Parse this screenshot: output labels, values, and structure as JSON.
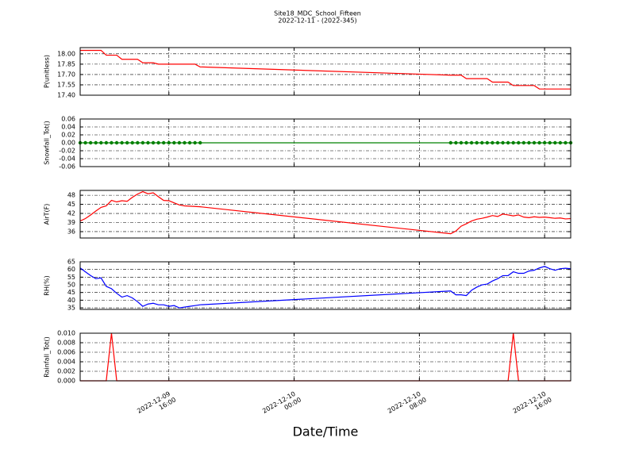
{
  "chart_data": [
    {
      "type": "line",
      "title": "Site18_MDC_School_Fifteen",
      "subtitle": "2022-12-11 - (2022-345)",
      "ylabel": "P(unitless)",
      "x": [
        "2022-12-09 10:20",
        "2022-12-09 10:40",
        "2022-12-09 11:00",
        "2022-12-09 11:20",
        "2022-12-09 11:40",
        "2022-12-09 12:00",
        "2022-12-09 12:20",
        "2022-12-09 12:40",
        "2022-12-09 13:00",
        "2022-12-09 13:20",
        "2022-12-09 13:40",
        "2022-12-09 14:00",
        "2022-12-09 14:20",
        "2022-12-09 14:40",
        "2022-12-09 15:00",
        "2022-12-09 15:20",
        "2022-12-09 15:40",
        "2022-12-09 16:00",
        "2022-12-09 16:20",
        "2022-12-09 16:40",
        "2022-12-09 17:00",
        "2022-12-09 17:20",
        "2022-12-09 17:40",
        "2022-12-09 18:00",
        "2022-12-10 10:00",
        "2022-12-10 10:20",
        "2022-12-10 10:40",
        "2022-12-10 11:00",
        "2022-12-10 11:20",
        "2022-12-10 11:40",
        "2022-12-10 12:00",
        "2022-12-10 12:20",
        "2022-12-10 12:40",
        "2022-12-10 13:00",
        "2022-12-10 13:20",
        "2022-12-10 13:40",
        "2022-12-10 14:00",
        "2022-12-10 14:20",
        "2022-12-10 14:40",
        "2022-12-10 15:00",
        "2022-12-10 15:20",
        "2022-12-10 15:40",
        "2022-12-10 16:00",
        "2022-12-10 16:20",
        "2022-12-10 16:40",
        "2022-12-10 17:00",
        "2022-12-10 17:20",
        "2022-12-10 17:40"
      ],
      "series": [
        {
          "color": "#ff0000",
          "values": [
            18.05,
            18.05,
            18.05,
            18.05,
            18.05,
            17.98,
            17.98,
            17.98,
            17.92,
            17.92,
            17.92,
            17.92,
            17.87,
            17.87,
            17.87,
            17.85,
            17.85,
            17.85,
            17.85,
            17.85,
            17.85,
            17.85,
            17.85,
            17.81,
            17.69,
            17.69,
            17.69,
            17.64,
            17.64,
            17.64,
            17.64,
            17.64,
            17.59,
            17.59,
            17.59,
            17.59,
            17.54,
            17.54,
            17.54,
            17.54,
            17.54,
            17.49,
            17.49,
            17.49,
            17.49,
            17.49,
            17.49,
            17.49
          ]
        }
      ],
      "xlim": [
        "2022-12-09 10:20",
        "2022-12-10 17:40"
      ],
      "xticks": [
        "2022-12-09 16:00",
        "2022-12-10 00:00",
        "2022-12-10 08:00",
        "2022-12-10 16:00"
      ],
      "ylim": [
        17.4,
        18.09
      ],
      "yticks": [
        {
          "value": 17.4,
          "label": "17.40"
        },
        {
          "value": 17.55,
          "label": "17.55"
        },
        {
          "value": 17.7,
          "label": "17.70"
        },
        {
          "value": 17.85,
          "label": "17.85"
        },
        {
          "value": 18.0,
          "label": "18.00"
        }
      ],
      "grid": true
    },
    {
      "type": "line",
      "ylabel": "Snowfall_Tot()",
      "markers": true,
      "x": [
        "2022-12-09 10:20",
        "2022-12-09 10:40",
        "2022-12-09 11:00",
        "2022-12-09 11:20",
        "2022-12-09 11:40",
        "2022-12-09 12:00",
        "2022-12-09 12:20",
        "2022-12-09 12:40",
        "2022-12-09 13:00",
        "2022-12-09 13:20",
        "2022-12-09 13:40",
        "2022-12-09 14:00",
        "2022-12-09 14:20",
        "2022-12-09 14:40",
        "2022-12-09 15:00",
        "2022-12-09 15:20",
        "2022-12-09 15:40",
        "2022-12-09 16:00",
        "2022-12-09 16:20",
        "2022-12-09 16:40",
        "2022-12-09 17:00",
        "2022-12-09 17:20",
        "2022-12-09 17:40",
        "2022-12-09 18:00",
        "2022-12-10 10:00",
        "2022-12-10 10:20",
        "2022-12-10 10:40",
        "2022-12-10 11:00",
        "2022-12-10 11:20",
        "2022-12-10 11:40",
        "2022-12-10 12:00",
        "2022-12-10 12:20",
        "2022-12-10 12:40",
        "2022-12-10 13:00",
        "2022-12-10 13:20",
        "2022-12-10 13:40",
        "2022-12-10 14:00",
        "2022-12-10 14:20",
        "2022-12-10 14:40",
        "2022-12-10 15:00",
        "2022-12-10 15:20",
        "2022-12-10 15:40",
        "2022-12-10 16:00",
        "2022-12-10 16:20",
        "2022-12-10 16:40",
        "2022-12-10 17:00",
        "2022-12-10 17:20",
        "2022-12-10 17:40"
      ],
      "series": [
        {
          "color": "#008000",
          "values": [
            0,
            0,
            0,
            0,
            0,
            0,
            0,
            0,
            0,
            0,
            0,
            0,
            0,
            0,
            0,
            0,
            0,
            0,
            0,
            0,
            0,
            0,
            0,
            0,
            0,
            0,
            0,
            0,
            0,
            0,
            0,
            0,
            0,
            0,
            0,
            0,
            0,
            0,
            0,
            0,
            0,
            0,
            0,
            0,
            0,
            0,
            0,
            0
          ]
        }
      ],
      "xlim": [
        "2022-12-09 10:20",
        "2022-12-10 17:40"
      ],
      "xticks": [
        "2022-12-09 16:00",
        "2022-12-10 00:00",
        "2022-12-10 08:00",
        "2022-12-10 16:00"
      ],
      "ylim": [
        -0.06,
        0.06
      ],
      "yticks": [
        {
          "value": -0.06,
          "label": "-0.06"
        },
        {
          "value": -0.04,
          "label": "-0.04"
        },
        {
          "value": -0.02,
          "label": "-0.02"
        },
        {
          "value": 0,
          "label": "0.00"
        },
        {
          "value": 0.02,
          "label": "0.02"
        },
        {
          "value": 0.04,
          "label": "0.04"
        },
        {
          "value": 0.06,
          "label": "0.06"
        }
      ],
      "grid": true
    },
    {
      "type": "line",
      "ylabel": "AirT(F)",
      "x": [
        "2022-12-09 10:20",
        "2022-12-09 10:40",
        "2022-12-09 11:00",
        "2022-12-09 11:20",
        "2022-12-09 11:40",
        "2022-12-09 12:00",
        "2022-12-09 12:20",
        "2022-12-09 12:40",
        "2022-12-09 13:00",
        "2022-12-09 13:20",
        "2022-12-09 13:40",
        "2022-12-09 14:00",
        "2022-12-09 14:20",
        "2022-12-09 14:40",
        "2022-12-09 15:00",
        "2022-12-09 15:20",
        "2022-12-09 15:40",
        "2022-12-09 16:00",
        "2022-12-09 16:20",
        "2022-12-09 16:40",
        "2022-12-09 17:00",
        "2022-12-09 17:20",
        "2022-12-09 17:40",
        "2022-12-09 18:00",
        "2022-12-10 10:00",
        "2022-12-10 10:20",
        "2022-12-10 10:40",
        "2022-12-10 11:00",
        "2022-12-10 11:20",
        "2022-12-10 11:40",
        "2022-12-10 12:00",
        "2022-12-10 12:20",
        "2022-12-10 12:40",
        "2022-12-10 13:00",
        "2022-12-10 13:20",
        "2022-12-10 13:40",
        "2022-12-10 14:00",
        "2022-12-10 14:20",
        "2022-12-10 14:40",
        "2022-12-10 15:00",
        "2022-12-10 15:20",
        "2022-12-10 15:40",
        "2022-12-10 16:00",
        "2022-12-10 16:20",
        "2022-12-10 16:40",
        "2022-12-10 17:00",
        "2022-12-10 17:20",
        "2022-12-10 17:40"
      ],
      "series": [
        {
          "color": "#ff0000",
          "values": [
            39.5,
            40.3,
            41.5,
            42.8,
            44,
            44.5,
            46.3,
            45.8,
            46.2,
            46,
            47.3,
            48.4,
            49.2,
            48.5,
            48.8,
            47.5,
            46.3,
            46.2,
            45.5,
            44.8,
            44.5,
            44.4,
            44.3,
            44.2,
            35.3,
            36.2,
            37.8,
            38.6,
            39.5,
            40.1,
            40.4,
            40.8,
            41.3,
            41,
            41.8,
            41.5,
            41.2,
            41.5,
            40.8,
            40.6,
            40.9,
            40.7,
            40.8,
            40.6,
            40.4,
            40.5,
            40.2,
            40.3
          ]
        }
      ],
      "xlim": [
        "2022-12-09 10:20",
        "2022-12-10 17:40"
      ],
      "xticks": [
        "2022-12-09 16:00",
        "2022-12-10 00:00",
        "2022-12-10 08:00",
        "2022-12-10 16:00"
      ],
      "ylim": [
        33.9,
        49.6
      ],
      "yticks": [
        36,
        39,
        42,
        45,
        48
      ],
      "grid": true
    },
    {
      "type": "line",
      "ylabel": "RH(%)",
      "x": [
        "2022-12-09 10:20",
        "2022-12-09 10:40",
        "2022-12-09 11:00",
        "2022-12-09 11:20",
        "2022-12-09 11:40",
        "2022-12-09 12:00",
        "2022-12-09 12:20",
        "2022-12-09 12:40",
        "2022-12-09 13:00",
        "2022-12-09 13:20",
        "2022-12-09 13:40",
        "2022-12-09 14:00",
        "2022-12-09 14:20",
        "2022-12-09 14:40",
        "2022-12-09 15:00",
        "2022-12-09 15:20",
        "2022-12-09 15:40",
        "2022-12-09 16:00",
        "2022-12-09 16:20",
        "2022-12-09 16:40",
        "2022-12-09 17:00",
        "2022-12-09 17:20",
        "2022-12-09 17:40",
        "2022-12-09 18:00",
        "2022-12-10 10:00",
        "2022-12-10 10:20",
        "2022-12-10 10:40",
        "2022-12-10 11:00",
        "2022-12-10 11:20",
        "2022-12-10 11:40",
        "2022-12-10 12:00",
        "2022-12-10 12:20",
        "2022-12-10 12:40",
        "2022-12-10 13:00",
        "2022-12-10 13:20",
        "2022-12-10 13:40",
        "2022-12-10 14:00",
        "2022-12-10 14:20",
        "2022-12-10 14:40",
        "2022-12-10 15:00",
        "2022-12-10 15:20",
        "2022-12-10 15:40",
        "2022-12-10 16:00",
        "2022-12-10 16:20",
        "2022-12-10 16:40",
        "2022-12-10 17:00",
        "2022-12-10 17:20",
        "2022-12-10 17:40"
      ],
      "series": [
        {
          "color": "#0000ff",
          "values": [
            61,
            58.5,
            56,
            54,
            54.5,
            49,
            47.5,
            44.5,
            42,
            43,
            41.5,
            39,
            36,
            37.5,
            38,
            37,
            37,
            36,
            36.5,
            35,
            35.5,
            36,
            36.5,
            37,
            46,
            43.5,
            43.5,
            43,
            46.5,
            48.5,
            50,
            50.5,
            52.5,
            54,
            56,
            56,
            58.5,
            57.5,
            57.5,
            59,
            59.5,
            61,
            62,
            60.5,
            59.5,
            60.5,
            60.8,
            60.5
          ]
        }
      ],
      "xlim": [
        "2022-12-09 10:20",
        "2022-12-10 17:40"
      ],
      "xticks": [
        "2022-12-09 16:00",
        "2022-12-10 00:00",
        "2022-12-10 08:00",
        "2022-12-10 16:00"
      ],
      "ylim": [
        34,
        65
      ],
      "yticks": [
        35,
        40,
        45,
        50,
        55,
        60,
        65
      ],
      "grid": true
    },
    {
      "type": "line",
      "ylabel": "Rainfall_Tot()",
      "xlabel": "Date/Time",
      "x": [
        "2022-12-09 10:20",
        "2022-12-09 10:40",
        "2022-12-09 11:00",
        "2022-12-09 11:20",
        "2022-12-09 11:40",
        "2022-12-09 12:00",
        "2022-12-09 12:20",
        "2022-12-09 12:40",
        "2022-12-09 13:00",
        "2022-12-09 13:20",
        "2022-12-09 13:40",
        "2022-12-09 14:00",
        "2022-12-09 14:20",
        "2022-12-09 14:40",
        "2022-12-09 15:00",
        "2022-12-09 15:20",
        "2022-12-09 15:40",
        "2022-12-09 16:00",
        "2022-12-09 16:20",
        "2022-12-09 16:40",
        "2022-12-09 17:00",
        "2022-12-09 17:20",
        "2022-12-09 17:40",
        "2022-12-09 18:00",
        "2022-12-10 10:00",
        "2022-12-10 10:20",
        "2022-12-10 10:40",
        "2022-12-10 11:00",
        "2022-12-10 11:20",
        "2022-12-10 11:40",
        "2022-12-10 12:00",
        "2022-12-10 12:20",
        "2022-12-10 12:40",
        "2022-12-10 13:00",
        "2022-12-10 13:20",
        "2022-12-10 13:40",
        "2022-12-10 14:00",
        "2022-12-10 14:20",
        "2022-12-10 14:40",
        "2022-12-10 15:00",
        "2022-12-10 15:20",
        "2022-12-10 15:40",
        "2022-12-10 16:00",
        "2022-12-10 16:20",
        "2022-12-10 16:40",
        "2022-12-10 17:00",
        "2022-12-10 17:20",
        "2022-12-10 17:40"
      ],
      "series": [
        {
          "color": "#ff0000",
          "values": [
            0,
            0,
            0,
            0,
            0,
            0,
            0.01,
            0,
            0,
            0,
            0,
            0,
            0,
            0,
            0,
            0,
            0,
            0,
            0,
            0,
            0,
            0,
            0,
            0,
            0,
            0,
            0,
            0,
            0,
            0,
            0,
            0,
            0,
            0,
            0,
            0,
            0.01,
            0,
            0,
            0,
            0,
            0,
            0,
            0,
            0,
            0,
            0,
            0
          ]
        }
      ],
      "xlim": [
        "2022-12-09 10:20",
        "2022-12-10 17:40"
      ],
      "xticks": [
        "2022-12-09 16:00",
        "2022-12-10 00:00",
        "2022-12-10 08:00",
        "2022-12-10 16:00"
      ],
      "ylim": [
        0,
        0.01
      ],
      "yticks": [
        {
          "value": 0,
          "label": "0.000"
        },
        {
          "value": 0.002,
          "label": "0.002"
        },
        {
          "value": 0.004,
          "label": "0.004"
        },
        {
          "value": 0.006,
          "label": "0.006"
        },
        {
          "value": 0.008,
          "label": "0.008"
        },
        {
          "value": 0.01,
          "label": "0.010"
        }
      ],
      "grid": true
    }
  ]
}
